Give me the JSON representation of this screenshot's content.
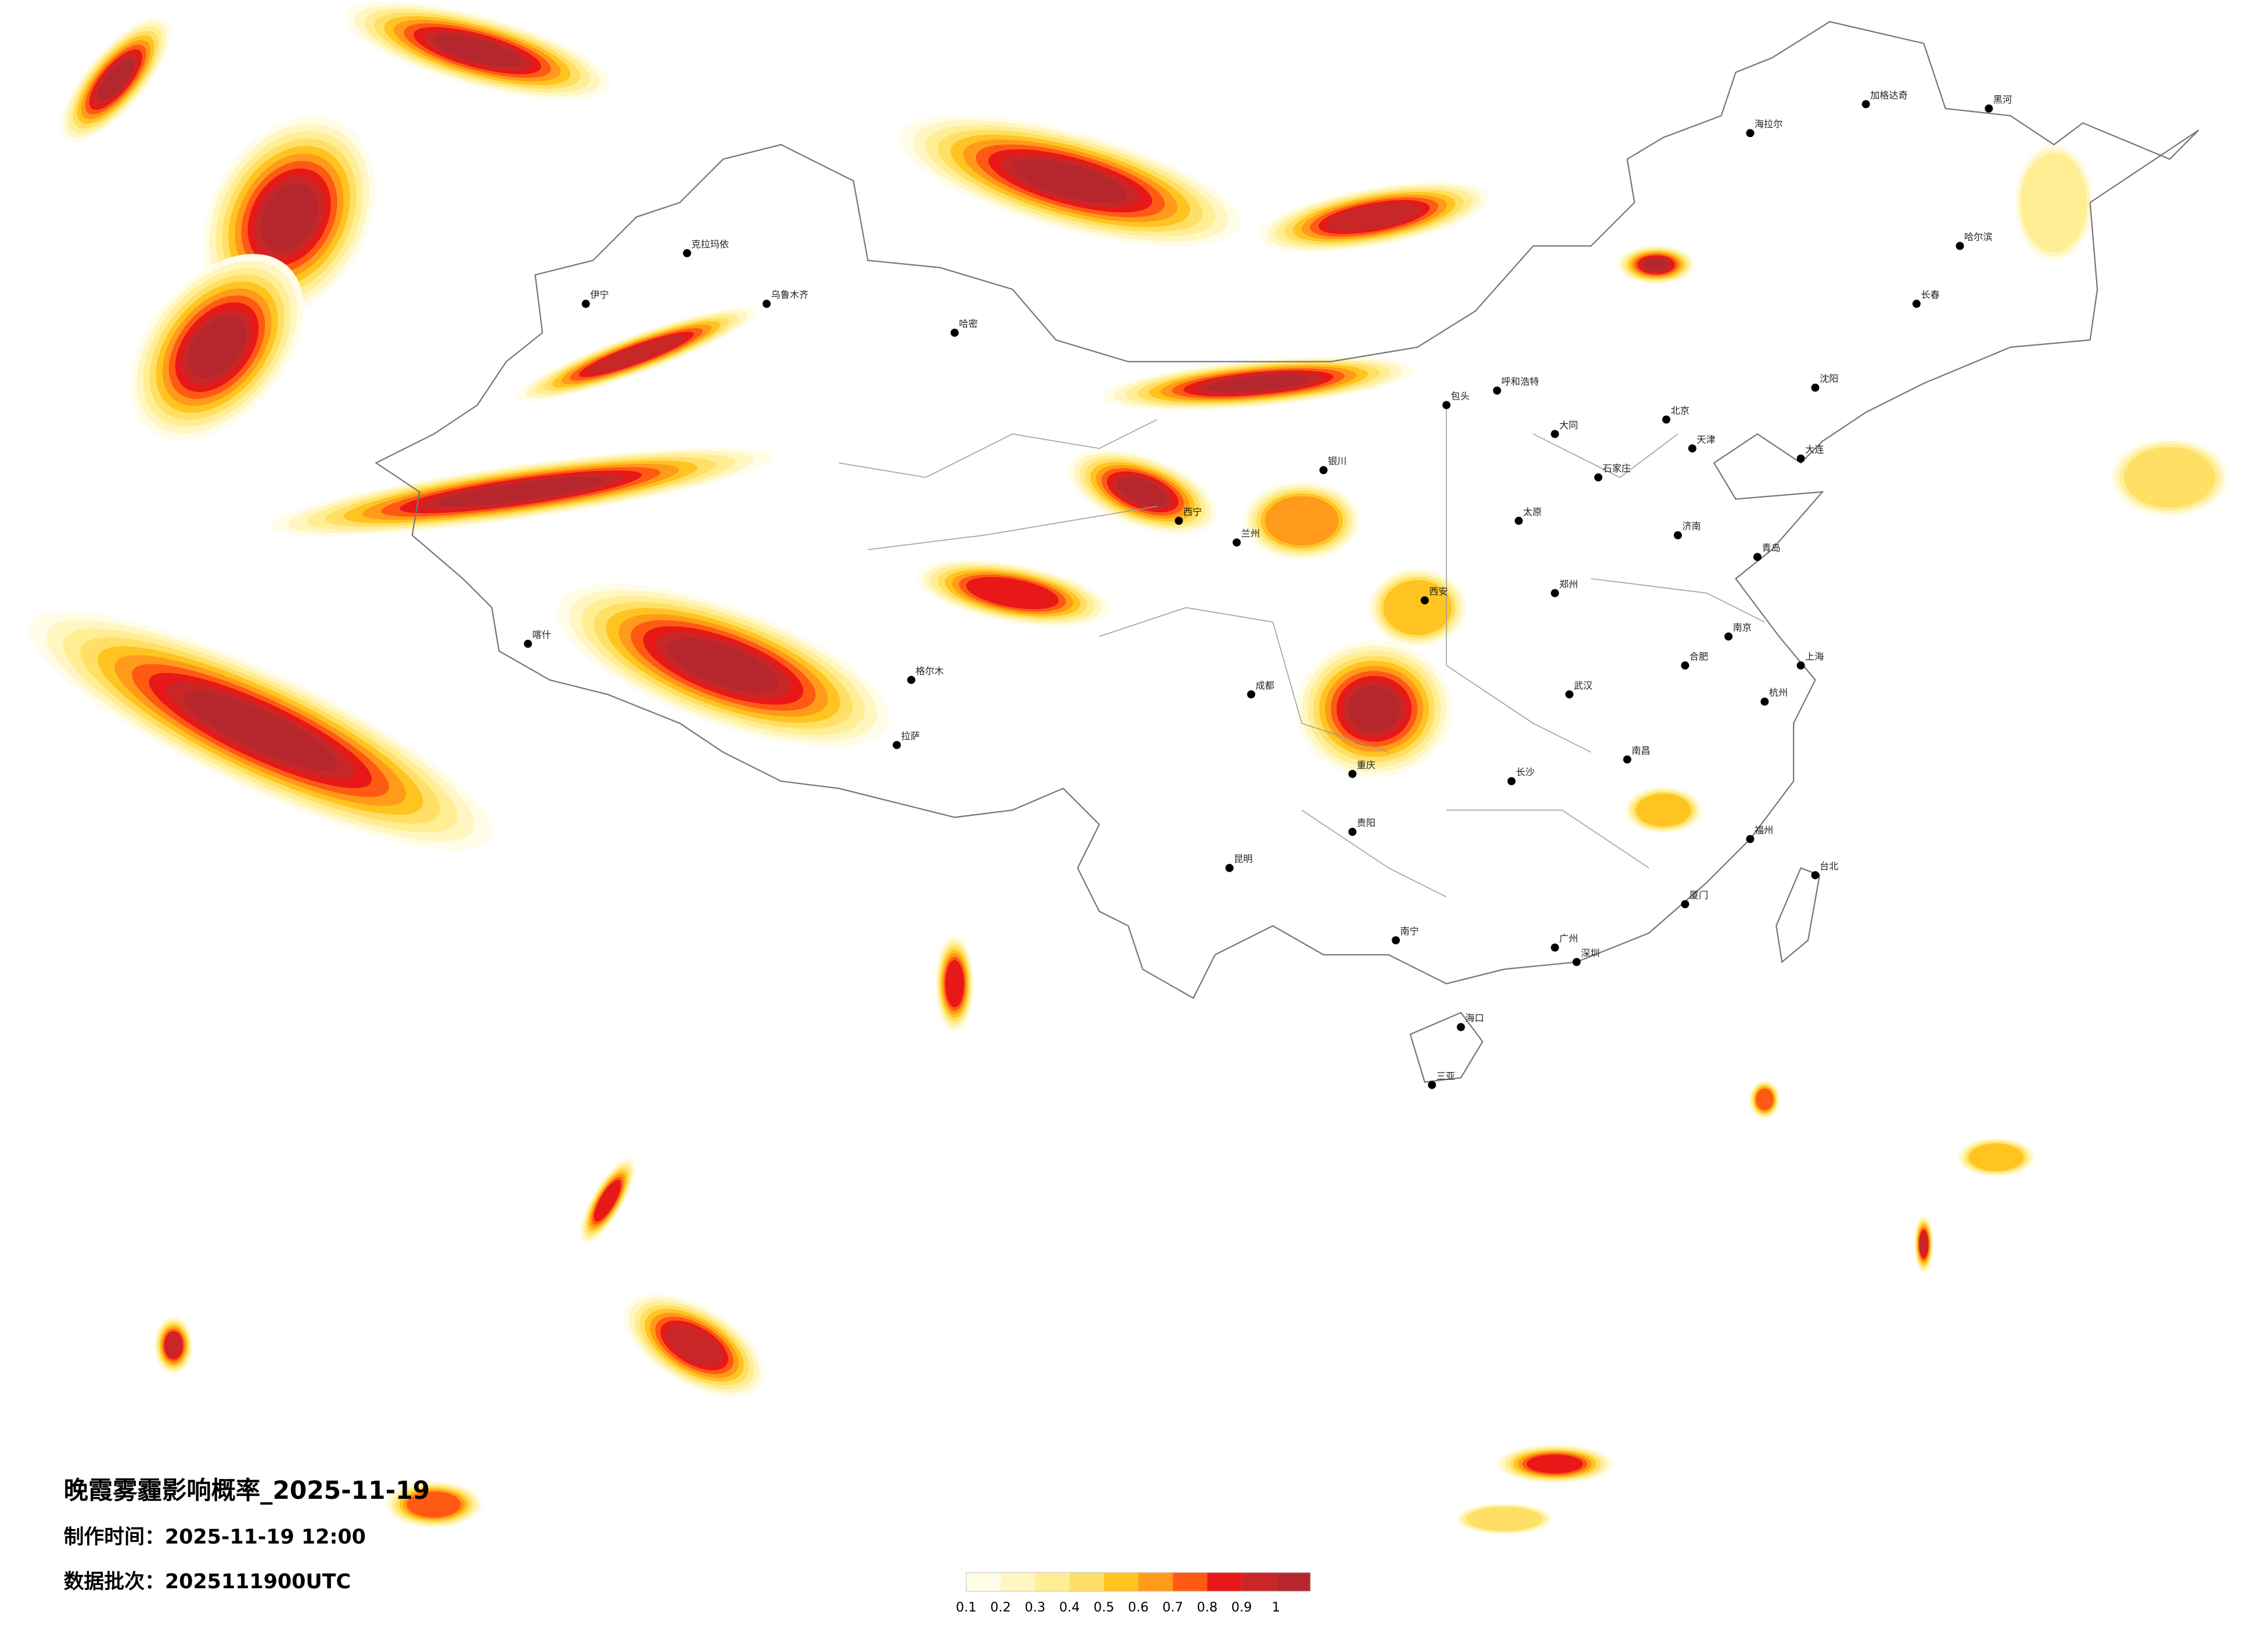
{
  "header": {
    "title": "晚霞雾霾影响概率_2025-11-19",
    "made_time": "制作时间：2025-11-19 12:00",
    "batch": "数据批次：2025111900UTC"
  },
  "legend": {
    "colors": [
      "#fffde8",
      "#fff6c2",
      "#ffee94",
      "#ffdf66",
      "#ffc420",
      "#ff9a1a",
      "#ff5a14",
      "#e81818",
      "#c92727",
      "#b5272d"
    ],
    "labels": [
      0.1,
      0.2,
      0.3,
      0.4,
      0.5,
      0.6,
      0.7,
      0.8,
      0.9,
      1
    ]
  },
  "cities": [
    "北京",
    "天津",
    "石家庄",
    "太原",
    "呼和浩特",
    "沈阳",
    "长春",
    "哈尔滨",
    "济南",
    "郑州",
    "西安",
    "兰州",
    "西宁",
    "银川",
    "乌鲁木齐",
    "拉萨",
    "成都",
    "重庆",
    "贵阳",
    "昆明",
    "南宁",
    "广州",
    "长沙",
    "武汉",
    "南昌",
    "合肥",
    "南京",
    "杭州",
    "上海",
    "福州",
    "台北",
    "海口",
    "喀什",
    "伊宁",
    "克拉玛依",
    "哈密",
    "格尔木",
    "大连",
    "青岛",
    "厦门",
    "深圳",
    "三亚",
    "黑河",
    "加格达奇",
    "海拉尔",
    "包头",
    "大同"
  ]
}
